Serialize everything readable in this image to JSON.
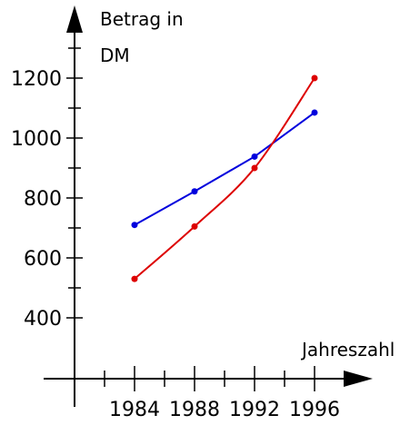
{
  "chart_data": {
    "type": "line",
    "title": "",
    "xlabel": "Jahreszahl",
    "ylabel_line1": "Betrag in",
    "ylabel_line2": "DM",
    "x_ticks": [
      1984,
      1988,
      1992,
      1996
    ],
    "y_ticks": [
      400,
      600,
      800,
      1000,
      1200
    ],
    "xlim": [
      1980,
      1999
    ],
    "ylim": [
      200,
      1300
    ],
    "grid": false,
    "series": [
      {
        "color": "#0000dd",
        "curve": "linear",
        "points": [
          {
            "x": 1984,
            "y": 710
          },
          {
            "x": 1988,
            "y": 822
          },
          {
            "x": 1992,
            "y": 938
          },
          {
            "x": 1996,
            "y": 1085
          }
        ]
      },
      {
        "color": "#dd0000",
        "curve": "smooth",
        "points": [
          {
            "x": 1984,
            "y": 530
          },
          {
            "x": 1988,
            "y": 705
          },
          {
            "x": 1992,
            "y": 900
          },
          {
            "x": 1996,
            "y": 1200
          }
        ]
      }
    ]
  }
}
